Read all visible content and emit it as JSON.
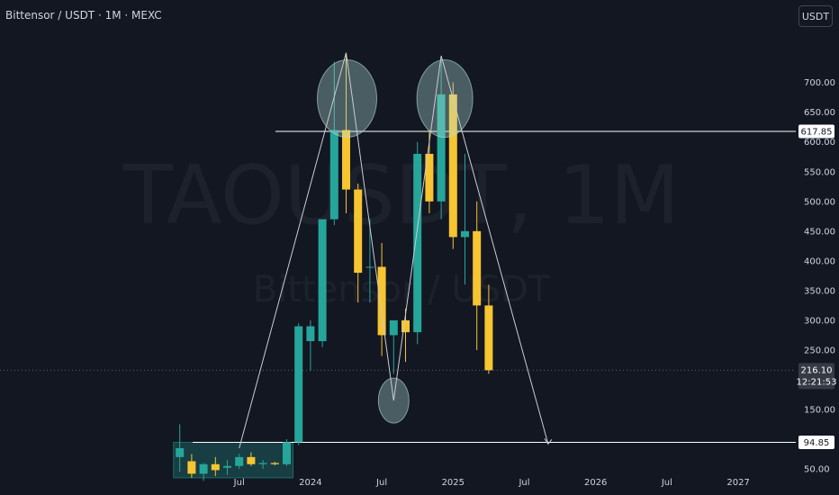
{
  "header": {
    "title": "Bittensor / USDT · 1M · MEXC"
  },
  "currency_button": {
    "label": "USDT"
  },
  "watermark": {
    "symbol": "TAOUSDT, 1M",
    "name": "Bittensor / USDT"
  },
  "colors": {
    "up": "#26a69a",
    "down": "#f7c531",
    "background": "#131722",
    "line": "#ffffff",
    "circle": "#b2dfdb"
  },
  "price_badges": {
    "resistance": "617.85",
    "support": "94.85",
    "last": "216.10",
    "countdown": "12:21:53"
  },
  "chart_data": {
    "type": "candlestick",
    "title": "Bittensor / USDT · 1M · MEXC",
    "y_ticks": [
      50,
      150,
      250,
      300,
      350,
      400,
      450,
      500,
      550,
      600,
      650,
      700
    ],
    "y_tick_labels": [
      "50.00",
      "150.00",
      "250.00",
      "300.00",
      "350.00",
      "400.00",
      "450.00",
      "500.00",
      "550.00",
      "600.00",
      "650.00",
      "700.00"
    ],
    "ylim": [
      0,
      760
    ],
    "x_labels": [
      {
        "label": "Jul",
        "date": "2023-07"
      },
      {
        "label": "2024",
        "date": "2024-01"
      },
      {
        "label": "Jul",
        "date": "2024-07"
      },
      {
        "label": "2025",
        "date": "2025-01"
      },
      {
        "label": "Jul",
        "date": "2025-07"
      },
      {
        "label": "2026",
        "date": "2026-01"
      },
      {
        "label": "Jul",
        "date": "2026-07"
      },
      {
        "label": "2027",
        "date": "2027-01"
      }
    ],
    "candles": [
      {
        "date": "2023-02",
        "o": 70,
        "h": 125,
        "l": 45,
        "c": 85
      },
      {
        "date": "2023-03",
        "o": 63,
        "h": 75,
        "l": 35,
        "c": 42
      },
      {
        "date": "2023-04",
        "o": 42,
        "h": 60,
        "l": 30,
        "c": 58
      },
      {
        "date": "2023-05",
        "o": 58,
        "h": 70,
        "l": 38,
        "c": 48
      },
      {
        "date": "2023-06",
        "o": 52,
        "h": 65,
        "l": 40,
        "c": 55
      },
      {
        "date": "2023-07",
        "o": 55,
        "h": 75,
        "l": 50,
        "c": 70
      },
      {
        "date": "2023-08",
        "o": 70,
        "h": 78,
        "l": 55,
        "c": 58
      },
      {
        "date": "2023-09",
        "o": 58,
        "h": 65,
        "l": 50,
        "c": 60
      },
      {
        "date": "2023-10",
        "o": 60,
        "h": 62,
        "l": 56,
        "c": 58
      },
      {
        "date": "2023-11",
        "o": 58,
        "h": 100,
        "l": 55,
        "c": 95
      },
      {
        "date": "2023-12",
        "o": 95,
        "h": 295,
        "l": 90,
        "c": 290
      },
      {
        "date": "2024-01",
        "o": 265,
        "h": 300,
        "l": 215,
        "c": 290
      },
      {
        "date": "2024-02",
        "o": 265,
        "h": 470,
        "l": 255,
        "c": 470
      },
      {
        "date": "2024-03",
        "o": 470,
        "h": 735,
        "l": 460,
        "c": 620
      },
      {
        "date": "2024-04",
        "o": 620,
        "h": 750,
        "l": 480,
        "c": 520
      },
      {
        "date": "2024-05",
        "o": 520,
        "h": 530,
        "l": 330,
        "c": 380
      },
      {
        "date": "2024-06",
        "o": 390,
        "h": 470,
        "l": 330,
        "c": 390
      },
      {
        "date": "2024-07",
        "o": 390,
        "h": 430,
        "l": 240,
        "c": 275
      },
      {
        "date": "2024-08",
        "o": 275,
        "h": 300,
        "l": 210,
        "c": 300
      },
      {
        "date": "2024-09",
        "o": 300,
        "h": 320,
        "l": 230,
        "c": 280
      },
      {
        "date": "2024-10",
        "o": 280,
        "h": 600,
        "l": 260,
        "c": 580
      },
      {
        "date": "2024-11",
        "o": 580,
        "h": 620,
        "l": 480,
        "c": 500
      },
      {
        "date": "2024-12",
        "o": 500,
        "h": 740,
        "l": 470,
        "c": 680
      },
      {
        "date": "2025-01",
        "o": 680,
        "h": 700,
        "l": 420,
        "c": 440
      },
      {
        "date": "2025-02",
        "o": 440,
        "h": 580,
        "l": 360,
        "c": 450
      },
      {
        "date": "2025-03",
        "o": 450,
        "h": 500,
        "l": 250,
        "c": 325
      },
      {
        "date": "2025-04",
        "o": 325,
        "h": 360,
        "l": 210,
        "c": 216.1
      }
    ],
    "horizontal_lines": [
      {
        "price": 617.85,
        "label": "617.85"
      },
      {
        "price": 94.85,
        "label": "94.85"
      }
    ],
    "last_price": 216.1,
    "annotations": {
      "highlight_circles": [
        {
          "date": "2024-04",
          "price": 735
        },
        {
          "date": "2024-12",
          "price": 735
        },
        {
          "date": "2024-08",
          "price": 165
        }
      ],
      "path": [
        {
          "date": "2023-07",
          "price": 85
        },
        {
          "date": "2024-04",
          "price": 750
        },
        {
          "date": "2024-08",
          "price": 165
        },
        {
          "date": "2024-12",
          "price": 745
        },
        {
          "date": "2025-09",
          "price": 92
        }
      ],
      "consolidation_box": {
        "date_from": "2023-02",
        "date_to": "2023-11",
        "price_low": 35,
        "price_high": 94.85
      }
    }
  }
}
